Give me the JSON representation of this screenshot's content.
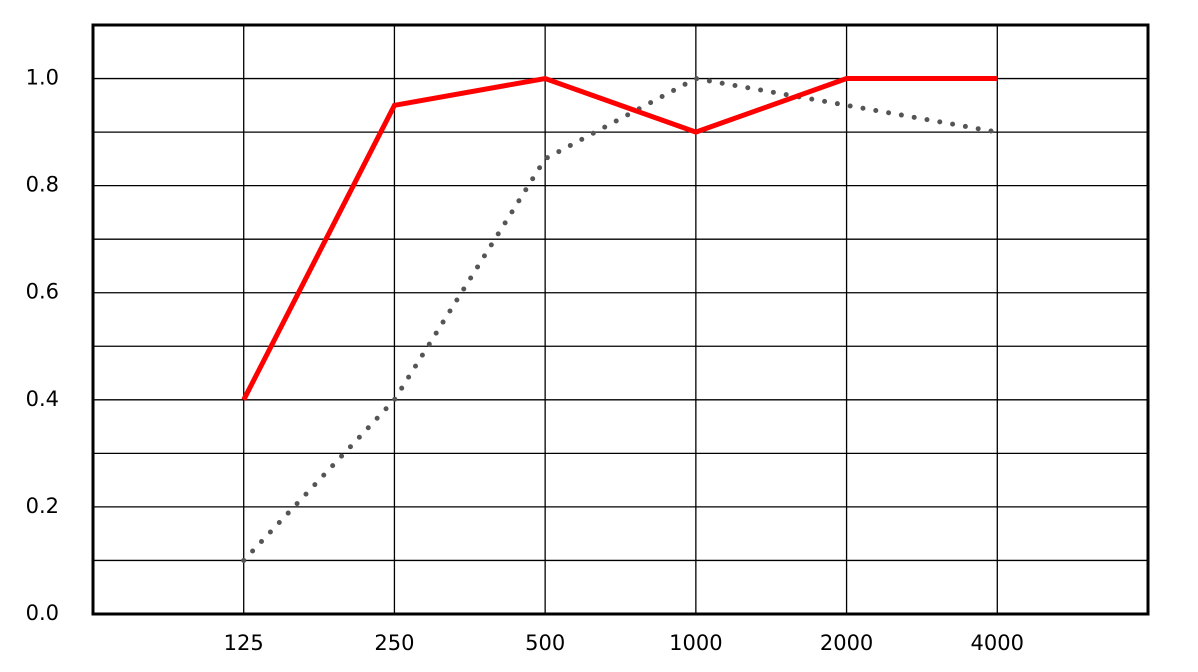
{
  "chart_data": {
    "type": "line",
    "categories": [
      null,
      "125",
      "250",
      "500",
      "1000",
      "2000",
      "4000",
      null
    ],
    "series": [
      {
        "color": "#ff0000",
        "style": "solid",
        "values": [
          null,
          0.4,
          0.95,
          1.0,
          0.9,
          1.0,
          1.0,
          null
        ]
      },
      {
        "color": "#555555",
        "style": "dotted",
        "values": [
          null,
          0.1,
          0.4,
          0.85,
          1.0,
          0.95,
          0.9,
          null
        ]
      }
    ],
    "ylim": [
      0,
      1.1
    ],
    "yticks": [
      {
        "value": 0,
        "label": "0.0"
      },
      0.2,
      0.4,
      0.6,
      0.8,
      {
        "value": 1,
        "label": "1.0"
      }
    ],
    "y_minor_ticks": [
      0.1,
      0.3,
      0.5,
      0.7,
      0.9
    ],
    "grid": true
  }
}
